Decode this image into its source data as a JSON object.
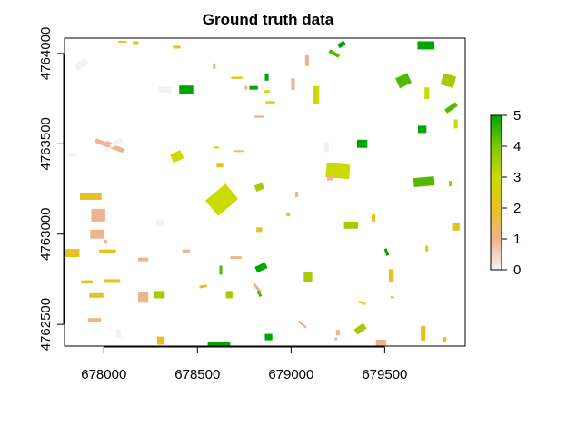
{
  "map": {
    "title": "Ground truth data",
    "x_axis": {
      "range": [
        677790,
        679930
      ],
      "ticks": [
        678000,
        678500,
        679000,
        679500
      ],
      "tick_labels": [
        "678000",
        "678500",
        "679000",
        "679500"
      ]
    },
    "y_axis": {
      "range": [
        4762380,
        4764085
      ],
      "ticks": [
        4762500,
        4763000,
        4763500,
        4764000
      ],
      "tick_labels": [
        "4762500",
        "4763000",
        "4763500",
        "4764000"
      ]
    },
    "legend": {
      "placement": "right",
      "range": [
        0,
        5
      ],
      "ticks": [
        0,
        1,
        2,
        3,
        4,
        5
      ],
      "tick_labels": [
        "0",
        "1",
        "2",
        "3",
        "4",
        "5"
      ],
      "colors": [
        "#F2F2F2",
        "#EDB48E",
        "#E6C21F",
        "#C9DB00",
        "#7FC700",
        "#00A600"
      ]
    },
    "colors": {
      "c0": "#F2F2F2",
      "c1": "#EDB48E",
      "c2": "#E6C21F",
      "c2b": "#EBD239",
      "c3": "#C9DB00",
      "c35": "#A6CC00",
      "c4": "#54B800",
      "c5": "#00A600"
    },
    "fields": [
      {
        "x": 677880,
        "y": 4763940,
        "w": 70,
        "h": 35,
        "rot": -35,
        "c": "c0"
      },
      {
        "x": 678325,
        "y": 4763800,
        "w": 70,
        "h": 30,
        "rot": 5,
        "c": "c0"
      },
      {
        "x": 678030,
        "y": 4763490,
        "w": 160,
        "h": 25,
        "rot": 20,
        "c": "c1"
      },
      {
        "x": 678020,
        "y": 4763470,
        "w": 30,
        "h": 25,
        "rot": 0,
        "c": "c0"
      },
      {
        "x": 678030,
        "y": 4763500,
        "w": 40,
        "h": 20,
        "rot": 20,
        "c": "c1"
      },
      {
        "x": 678065,
        "y": 4763505,
        "w": 70,
        "h": 25,
        "rot": -30,
        "c": "c0"
      },
      {
        "x": 677830,
        "y": 4763440,
        "w": 55,
        "h": 20,
        "rot": 0,
        "c": "c0"
      },
      {
        "x": 678440,
        "y": 4763800,
        "w": 75,
        "h": 45,
        "rot": 0,
        "c": "c5"
      },
      {
        "x": 678390,
        "y": 4763430,
        "w": 60,
        "h": 50,
        "rot": -25,
        "c": "c3"
      },
      {
        "x": 678630,
        "y": 4763190,
        "w": 140,
        "h": 110,
        "rot": -40,
        "c": "c3"
      },
      {
        "x": 678830,
        "y": 4763260,
        "w": 45,
        "h": 35,
        "rot": -20,
        "c": "c35"
      },
      {
        "x": 678800,
        "y": 4763810,
        "w": 45,
        "h": 20,
        "rot": 0,
        "c": "c5"
      },
      {
        "x": 678870,
        "y": 4763870,
        "w": 20,
        "h": 40,
        "rot": 0,
        "c": "c5"
      },
      {
        "x": 678870,
        "y": 4763790,
        "w": 30,
        "h": 15,
        "rot": 0,
        "c": "c3"
      },
      {
        "x": 678890,
        "y": 4763730,
        "w": 50,
        "h": 12,
        "rot": 0,
        "c": "c2"
      },
      {
        "x": 678830,
        "y": 4763650,
        "w": 50,
        "h": 12,
        "rot": 0,
        "c": "c1"
      },
      {
        "x": 679010,
        "y": 4763830,
        "w": 20,
        "h": 65,
        "rot": 0,
        "c": "c1"
      },
      {
        "x": 679135,
        "y": 4763770,
        "w": 30,
        "h": 100,
        "rot": 0,
        "c": "c3"
      },
      {
        "x": 679085,
        "y": 4763960,
        "w": 20,
        "h": 60,
        "rot": 0,
        "c": "c1"
      },
      {
        "x": 679270,
        "y": 4764050,
        "w": 40,
        "h": 25,
        "rot": -30,
        "c": "c5"
      },
      {
        "x": 679230,
        "y": 4764000,
        "w": 60,
        "h": 20,
        "rot": 30,
        "c": "c4"
      },
      {
        "x": 679250,
        "y": 4763350,
        "w": 125,
        "h": 80,
        "rot": 5,
        "c": "c3"
      },
      {
        "x": 679380,
        "y": 4763500,
        "w": 55,
        "h": 45,
        "rot": 0,
        "c": "c5"
      },
      {
        "x": 679190,
        "y": 4763480,
        "w": 25,
        "h": 50,
        "rot": 0,
        "c": "c0"
      },
      {
        "x": 679720,
        "y": 4764045,
        "w": 90,
        "h": 45,
        "rot": 0,
        "c": "c5"
      },
      {
        "x": 679600,
        "y": 4763850,
        "w": 70,
        "h": 60,
        "rot": -25,
        "c": "c4"
      },
      {
        "x": 679840,
        "y": 4763850,
        "w": 70,
        "h": 65,
        "rot": 15,
        "c": "c35"
      },
      {
        "x": 679855,
        "y": 4763700,
        "w": 70,
        "h": 25,
        "rot": -35,
        "c": "c4"
      },
      {
        "x": 679725,
        "y": 4763780,
        "w": 25,
        "h": 65,
        "rot": 0,
        "c": "c3"
      },
      {
        "x": 679700,
        "y": 4763580,
        "w": 45,
        "h": 40,
        "rot": 0,
        "c": "c5"
      },
      {
        "x": 679880,
        "y": 4763610,
        "w": 20,
        "h": 50,
        "rot": 0,
        "c": "c3"
      },
      {
        "x": 679710,
        "y": 4763290,
        "w": 110,
        "h": 50,
        "rot": -5,
        "c": "c4"
      },
      {
        "x": 679850,
        "y": 4763280,
        "w": 15,
        "h": 30,
        "rot": 0,
        "c": "c35"
      },
      {
        "x": 677930,
        "y": 4763210,
        "w": 115,
        "h": 40,
        "rot": 0,
        "c": "c2"
      },
      {
        "x": 677970,
        "y": 4763105,
        "w": 75,
        "h": 70,
        "rot": 0,
        "c": "c1"
      },
      {
        "x": 677965,
        "y": 4763000,
        "w": 75,
        "h": 50,
        "rot": 0,
        "c": "c1"
      },
      {
        "x": 678010,
        "y": 4762960,
        "w": 15,
        "h": 20,
        "rot": 0,
        "c": "c1"
      },
      {
        "x": 677830,
        "y": 4762895,
        "w": 80,
        "h": 45,
        "rot": 0,
        "c": "c2"
      },
      {
        "x": 678020,
        "y": 4762905,
        "w": 90,
        "h": 20,
        "rot": 0,
        "c": "c2"
      },
      {
        "x": 678300,
        "y": 4763060,
        "w": 40,
        "h": 35,
        "rot": 0,
        "c": "c0"
      },
      {
        "x": 678440,
        "y": 4762905,
        "w": 40,
        "h": 20,
        "rot": 0,
        "c": "c1"
      },
      {
        "x": 678210,
        "y": 4762860,
        "w": 55,
        "h": 20,
        "rot": 0,
        "c": "c1"
      },
      {
        "x": 677910,
        "y": 4762735,
        "w": 60,
        "h": 18,
        "rot": 0,
        "c": "c2"
      },
      {
        "x": 678045,
        "y": 4762740,
        "w": 85,
        "h": 20,
        "rot": 0,
        "c": "c2"
      },
      {
        "x": 677960,
        "y": 4762660,
        "w": 75,
        "h": 25,
        "rot": 0,
        "c": "c2"
      },
      {
        "x": 677950,
        "y": 4762525,
        "w": 70,
        "h": 20,
        "rot": 0,
        "c": "c1"
      },
      {
        "x": 678210,
        "y": 4762650,
        "w": 55,
        "h": 60,
        "rot": 0,
        "c": "c1"
      },
      {
        "x": 678295,
        "y": 4762665,
        "w": 60,
        "h": 40,
        "rot": 0,
        "c": "c35"
      },
      {
        "x": 678080,
        "y": 4762450,
        "w": 25,
        "h": 45,
        "rot": 0,
        "c": "c0"
      },
      {
        "x": 678305,
        "y": 4762410,
        "w": 40,
        "h": 45,
        "rot": 0,
        "c": "c2"
      },
      {
        "x": 678615,
        "y": 4762385,
        "w": 120,
        "h": 30,
        "rot": 0,
        "c": "c5"
      },
      {
        "x": 678625,
        "y": 4762800,
        "w": 15,
        "h": 50,
        "rot": 0,
        "c": "c4"
      },
      {
        "x": 678840,
        "y": 4762815,
        "w": 60,
        "h": 35,
        "rot": -25,
        "c": "c5"
      },
      {
        "x": 678820,
        "y": 4762700,
        "w": 60,
        "h": 15,
        "rot": 50,
        "c": "c1"
      },
      {
        "x": 678830,
        "y": 4762670,
        "w": 15,
        "h": 35,
        "rot": -30,
        "c": "c4"
      },
      {
        "x": 678670,
        "y": 4762665,
        "w": 35,
        "h": 40,
        "rot": 0,
        "c": "c35"
      },
      {
        "x": 678530,
        "y": 4762710,
        "w": 40,
        "h": 15,
        "rot": -10,
        "c": "c2"
      },
      {
        "x": 678705,
        "y": 4762870,
        "w": 60,
        "h": 15,
        "rot": 0,
        "c": "c1"
      },
      {
        "x": 679090,
        "y": 4762760,
        "w": 45,
        "h": 55,
        "rot": 0,
        "c": "c35"
      },
      {
        "x": 679320,
        "y": 4763050,
        "w": 75,
        "h": 40,
        "rot": 0,
        "c": "c35"
      },
      {
        "x": 679440,
        "y": 4763090,
        "w": 20,
        "h": 40,
        "rot": 0,
        "c": "c2"
      },
      {
        "x": 679535,
        "y": 4762770,
        "w": 25,
        "h": 70,
        "rot": 0,
        "c": "c2"
      },
      {
        "x": 679540,
        "y": 4762650,
        "w": 20,
        "h": 10,
        "rot": 0,
        "c": "c2"
      },
      {
        "x": 679380,
        "y": 4762620,
        "w": 40,
        "h": 15,
        "rot": 20,
        "c": "c2b"
      },
      {
        "x": 679370,
        "y": 4762475,
        "w": 60,
        "h": 35,
        "rot": -35,
        "c": "c35"
      },
      {
        "x": 679480,
        "y": 4762390,
        "w": 55,
        "h": 50,
        "rot": 0,
        "c": "c1"
      },
      {
        "x": 679705,
        "y": 4762450,
        "w": 25,
        "h": 80,
        "rot": 0,
        "c": "c2"
      },
      {
        "x": 679820,
        "y": 4762415,
        "w": 20,
        "h": 30,
        "rot": 0,
        "c": "c2"
      },
      {
        "x": 679880,
        "y": 4763040,
        "w": 40,
        "h": 40,
        "rot": 0,
        "c": "c2"
      },
      {
        "x": 679725,
        "y": 4762920,
        "w": 15,
        "h": 30,
        "rot": 0,
        "c": "c2"
      },
      {
        "x": 679510,
        "y": 4762900,
        "w": 15,
        "h": 40,
        "rot": -20,
        "c": "c5"
      },
      {
        "x": 679060,
        "y": 4762500,
        "w": 55,
        "h": 12,
        "rot": 40,
        "c": "c1"
      },
      {
        "x": 678880,
        "y": 4762430,
        "w": 40,
        "h": 35,
        "rot": 0,
        "c": "c5"
      },
      {
        "x": 679240,
        "y": 4762420,
        "w": 15,
        "h": 15,
        "rot": 0,
        "c": "c1"
      },
      {
        "x": 679250,
        "y": 4762455,
        "w": 20,
        "h": 30,
        "rot": 0,
        "c": "c1"
      },
      {
        "x": 678720,
        "y": 4763460,
        "w": 50,
        "h": 10,
        "rot": 0,
        "c": "c1"
      },
      {
        "x": 678600,
        "y": 4763480,
        "w": 30,
        "h": 10,
        "rot": 0,
        "c": "c3"
      },
      {
        "x": 678620,
        "y": 4763380,
        "w": 35,
        "h": 20,
        "rot": 0,
        "c": "c2"
      },
      {
        "x": 678590,
        "y": 4763930,
        "w": 15,
        "h": 30,
        "rot": 0,
        "c": "c1"
      },
      {
        "x": 678710,
        "y": 4763865,
        "w": 60,
        "h": 12,
        "rot": 0,
        "c": "c2"
      },
      {
        "x": 678760,
        "y": 4763810,
        "w": 15,
        "h": 20,
        "rot": 0,
        "c": "c1"
      },
      {
        "x": 679030,
        "y": 4763220,
        "w": 15,
        "h": 30,
        "rot": 0,
        "c": "c1"
      },
      {
        "x": 679210,
        "y": 4763310,
        "w": 35,
        "h": 25,
        "rot": 0,
        "c": "c1"
      },
      {
        "x": 678170,
        "y": 4764060,
        "w": 30,
        "h": 15,
        "rot": 0,
        "c": "c2"
      },
      {
        "x": 678100,
        "y": 4764065,
        "w": 45,
        "h": 10,
        "rot": 0,
        "c": "c2"
      },
      {
        "x": 678390,
        "y": 4764035,
        "w": 40,
        "h": 15,
        "rot": 0,
        "c": "c2"
      },
      {
        "x": 678830,
        "y": 4763025,
        "w": 30,
        "h": 25,
        "rot": 0,
        "c": "c2"
      },
      {
        "x": 678985,
        "y": 4763110,
        "w": 20,
        "h": 20,
        "rot": 0,
        "c": "c2"
      }
    ]
  }
}
